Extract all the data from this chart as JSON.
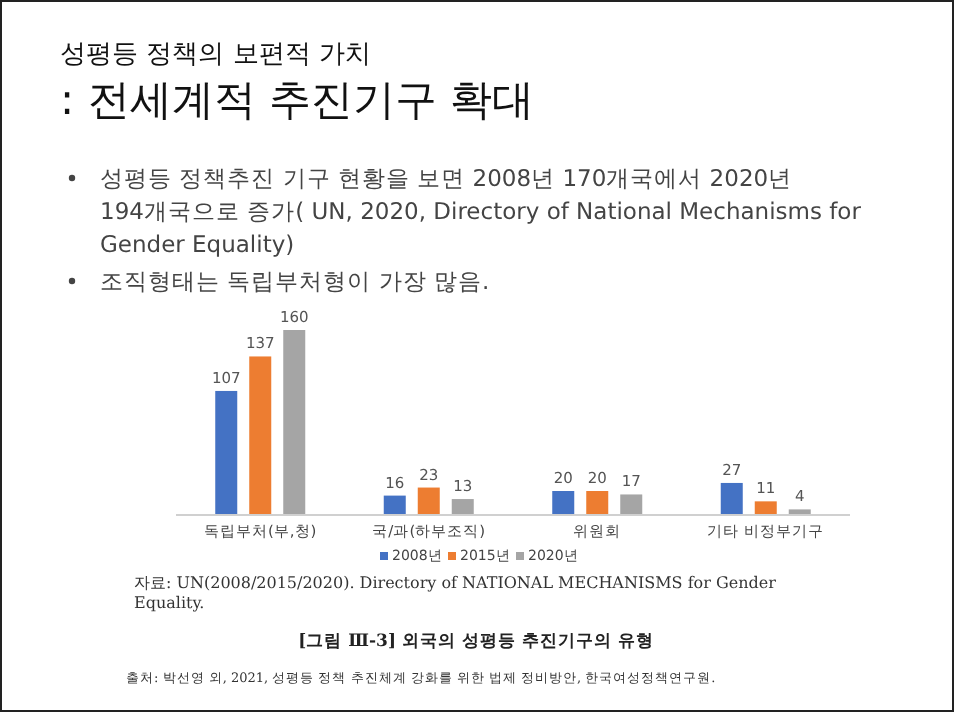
{
  "chart_data": {
    "type": "bar",
    "title": "성평등 정책의 보편적 가치",
    "subtitle": ": 전세계적 추진기구 확대",
    "annotations": [
      "성평등 정책추진 기구 현황을 보면 2008년 170개국에서 2020년 194개국으로 증가( UN, 2020, Directory of National Mechanisms for Gender Equality)",
      "조직형태는 독립부처형이 가장 많음.",
      "자료: UN(2008/2015/2020). Directory of NATIONAL MECHANISMS for Gender Equality.",
      "[그림 Ⅲ-3] 외국의 성평등 추진기구의 유형",
      "출처: 박선영 외, 2021, 성평등 정책 추진체계 강화를 위한 법제 정비방안, 한국여성정책연구원."
    ],
    "categories": [
      "독립부처(부,청)",
      "국/과(하부조직)",
      "위원회",
      "기타 비정부기구"
    ],
    "series": [
      {
        "name": "2008년",
        "color": "#4472c4",
        "values": [
          107,
          16,
          20,
          27
        ]
      },
      {
        "name": "2015년",
        "color": "#ed7d31",
        "values": [
          137,
          23,
          20,
          11
        ]
      },
      {
        "name": "2020년",
        "color": "#a5a5a5",
        "values": [
          160,
          13,
          17,
          4
        ]
      }
    ],
    "data_labels": true,
    "legend": "bottom"
  }
}
